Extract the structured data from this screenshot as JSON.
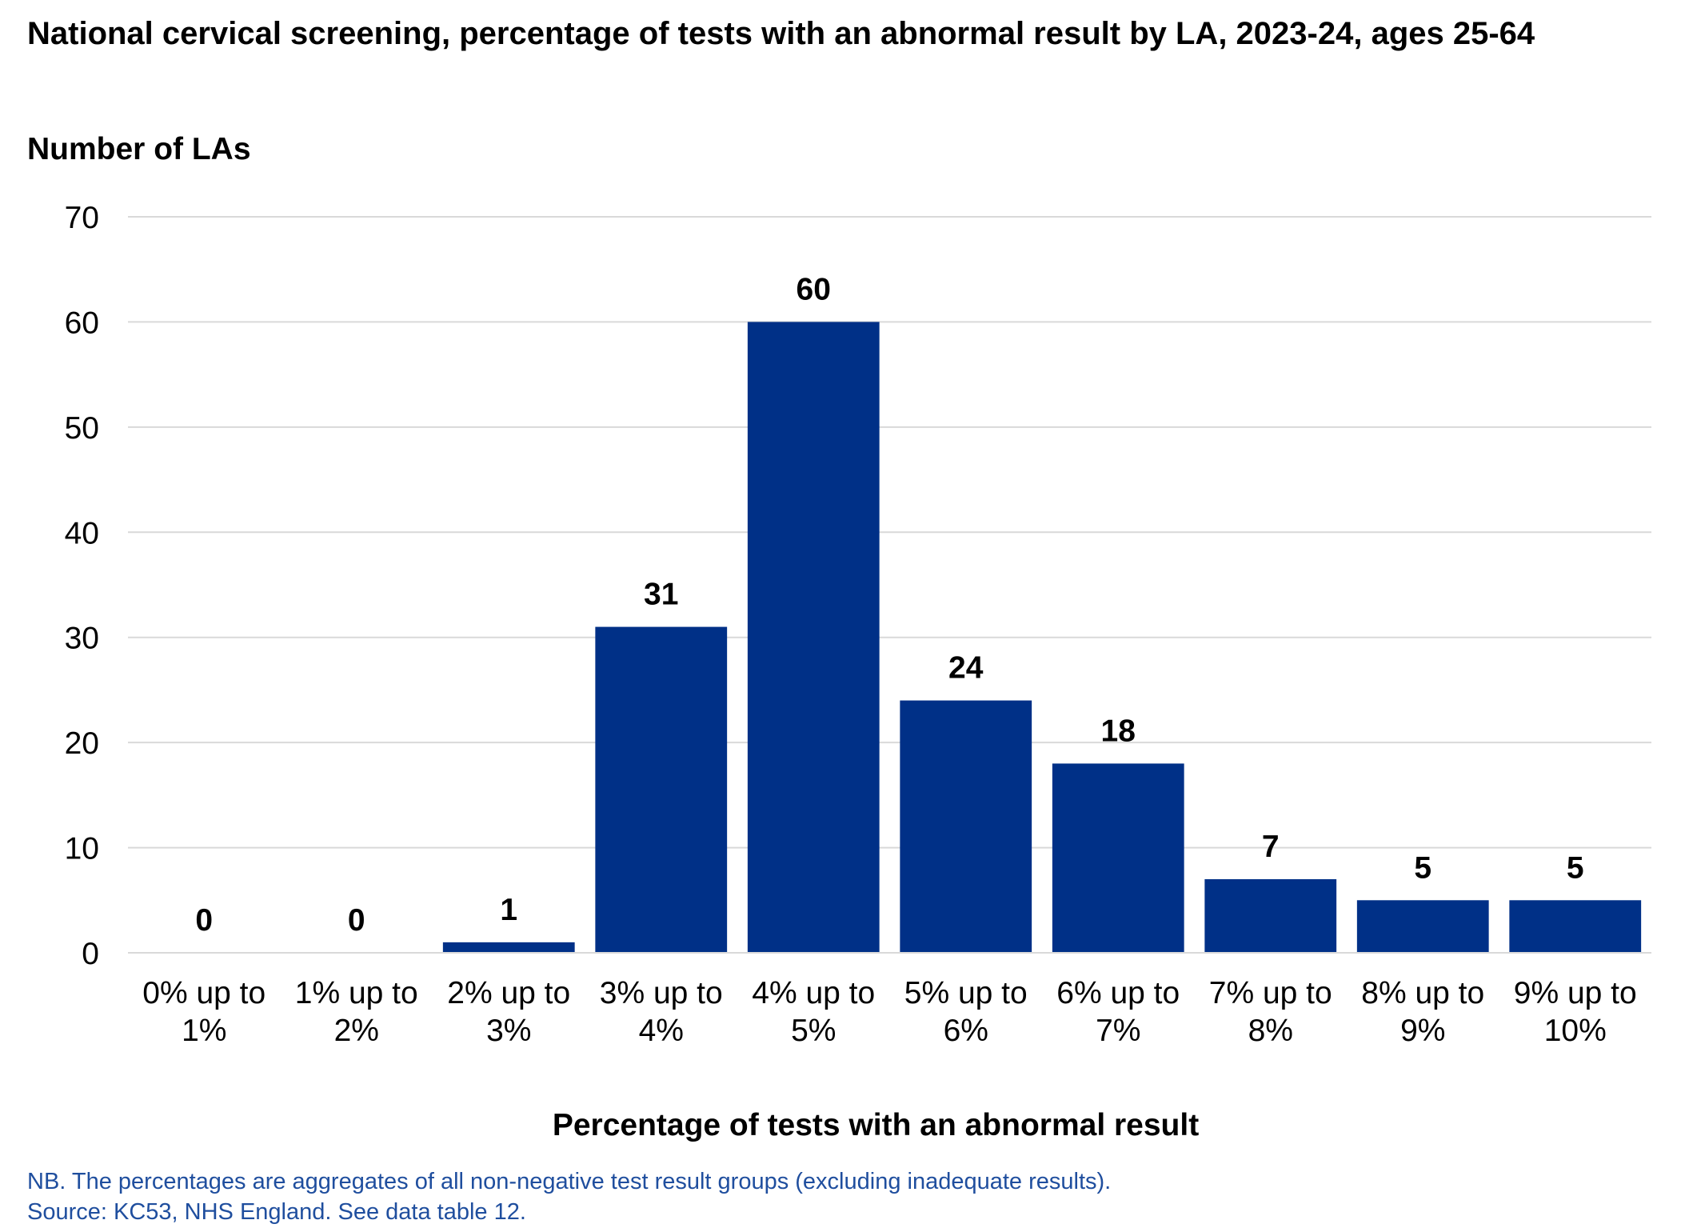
{
  "chart_data": {
    "type": "bar",
    "title": "National cervical screening, percentage of tests with an abnormal result by LA, 2023-24, ages 25-64",
    "ylabel": "Number of LAs",
    "xlabel": "Percentage of tests with an abnormal result",
    "ylim": [
      0,
      70
    ],
    "yticks": [
      0,
      10,
      20,
      30,
      40,
      50,
      60,
      70
    ],
    "grid": true,
    "categories": [
      [
        "0% up to",
        "1%"
      ],
      [
        "1% up to",
        "2%"
      ],
      [
        "2% up to",
        "3%"
      ],
      [
        "3% up to",
        "4%"
      ],
      [
        "4% up to",
        "5%"
      ],
      [
        "5% up to",
        "6%"
      ],
      [
        "6% up to",
        "7%"
      ],
      [
        "7% up to",
        "8%"
      ],
      [
        "8% up to",
        "9%"
      ],
      [
        "9% up to",
        "10%"
      ]
    ],
    "values": [
      0,
      0,
      1,
      31,
      60,
      24,
      18,
      7,
      5,
      5
    ],
    "colors": {
      "bar": "#003087",
      "grid": "#d9d9d9",
      "note": "#1f4e9e"
    }
  },
  "notes": {
    "line1": "NB. The percentages are aggregates of all non-negative test result groups (excluding inadequate results).",
    "line2": "Source: KC53, NHS England. See data table 12."
  }
}
